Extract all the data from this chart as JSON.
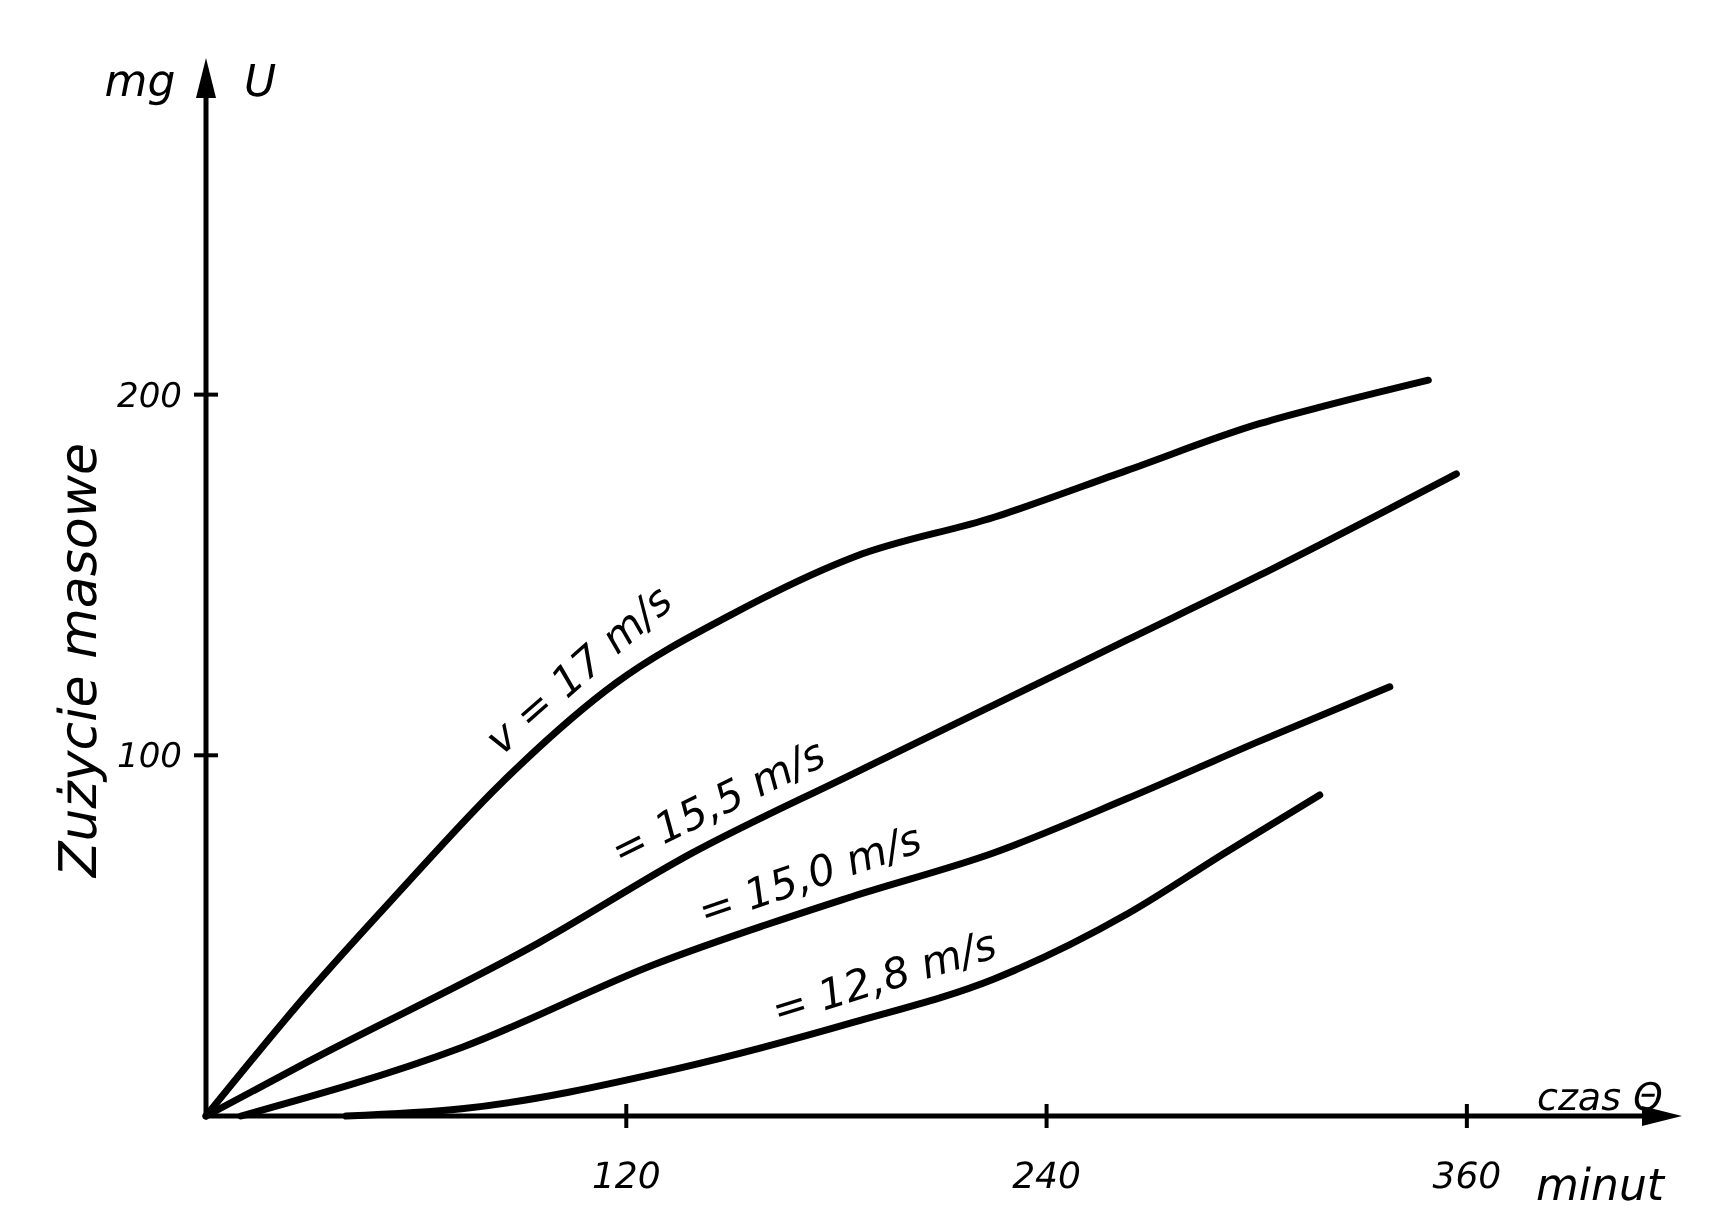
{
  "chart_data": {
    "type": "line",
    "xlabel": "czas Θ",
    "ylabel": "Zużycie masowe",
    "annotations": [
      "mg",
      "U",
      "minut"
    ],
    "xlim": [
      0,
      418
    ],
    "ylim": [
      0,
      290
    ],
    "xticks": [
      120,
      240,
      360
    ],
    "yticks": [
      100,
      200
    ],
    "grid": false,
    "marker": "none",
    "line_style": "solid",
    "series": [
      {
        "name": "v = 17 m/s",
        "color": "#000000",
        "x": [
          0,
          29,
          55,
          84,
          117,
          150,
          185,
          225,
          263,
          301,
          320,
          349
        ],
        "values": [
          0,
          34,
          62,
          92,
          120,
          139,
          155,
          166,
          179,
          192,
          197,
          204
        ]
      },
      {
        "name": "= 15,5 m/s",
        "color": "#000000",
        "x": [
          0,
          29,
          95,
          139,
          185,
          225,
          263,
          301,
          357
        ],
        "values": [
          0,
          15,
          48,
          73,
          95,
          114,
          132,
          150,
          178
        ]
      },
      {
        "name": "= 15,0 m/s",
        "color": "#000000",
        "x": [
          10,
          73,
          128,
          185,
          225,
          263,
          301,
          338
        ],
        "values": [
          0,
          19,
          42,
          61,
          73,
          88,
          104,
          119
        ]
      },
      {
        "name": "= 12,8 m/s",
        "color": "#000000",
        "x": [
          40,
          73,
          134,
          185,
          225,
          263,
          291,
          318
        ],
        "values": [
          0,
          2,
          13,
          26,
          38,
          56,
          73,
          89
        ]
      }
    ]
  }
}
